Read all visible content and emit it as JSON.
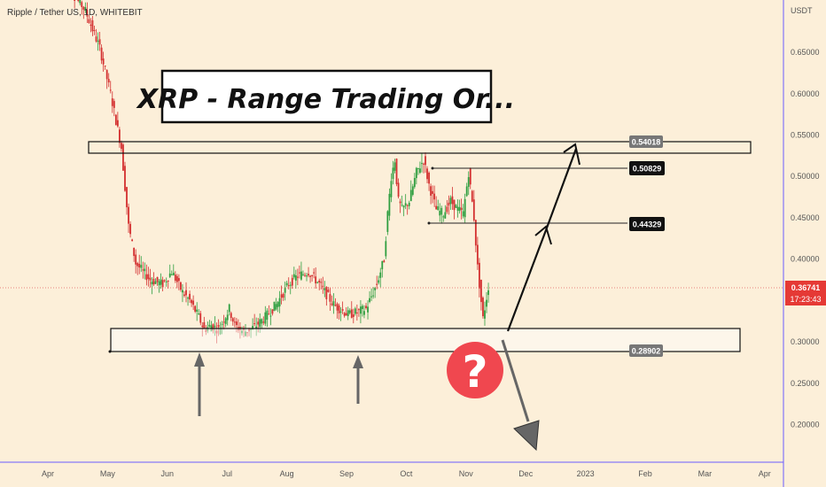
{
  "symbol_label": "Ripple / Tether US, 1D, WHITEBIT",
  "title": "XRP - Range Trading Or...",
  "question_icon": "question-mark-icon",
  "colors": {
    "background": "#fcefd9",
    "up": "#26a69a",
    "down": "#ef5350",
    "up_candle": "#2e9e3f",
    "down_candle": "#d32f2f",
    "question": "#f0474f",
    "axis_border": "#6a5cff"
  },
  "chart_data": {
    "type": "candlestick",
    "quote_currency": "USDT",
    "y_ticks": [
      "0.65000",
      "0.60000",
      "0.55000",
      "0.50000",
      "0.45000",
      "0.40000",
      "0.35000",
      "0.30000",
      "0.25000",
      "0.20000"
    ],
    "x_ticks": [
      "Apr",
      "May",
      "Jun",
      "Jul",
      "Aug",
      "Sep",
      "Oct",
      "Nov",
      "Dec",
      "2023",
      "Feb",
      "Mar",
      "Apr"
    ],
    "ylim": [
      0.16,
      0.7
    ],
    "current_price": "0.36741",
    "countdown": "17:23:43",
    "price_levels": [
      {
        "label": "0.54018",
        "value": 0.54018
      },
      {
        "label": "0.50829",
        "value": 0.50829
      },
      {
        "label": "0.44329",
        "value": 0.44329
      },
      {
        "label": "0.28902",
        "value": 0.28902
      }
    ],
    "zones": [
      {
        "name": "resistance",
        "low": 0.532,
        "high": 0.545
      },
      {
        "name": "support",
        "low": 0.289,
        "high": 0.317
      }
    ],
    "price_path": [
      [
        0,
        0.74
      ],
      [
        12,
        0.7
      ],
      [
        20,
        0.655
      ],
      [
        26,
        0.6
      ],
      [
        32,
        0.535
      ],
      [
        36,
        0.44
      ],
      [
        40,
        0.395
      ],
      [
        48,
        0.375
      ],
      [
        55,
        0.37
      ],
      [
        60,
        0.385
      ],
      [
        66,
        0.36
      ],
      [
        70,
        0.35
      ],
      [
        75,
        0.33
      ],
      [
        78,
        0.315
      ],
      [
        82,
        0.32
      ],
      [
        86,
        0.315
      ],
      [
        92,
        0.34
      ],
      [
        95,
        0.32
      ],
      [
        100,
        0.312
      ],
      [
        106,
        0.318
      ],
      [
        112,
        0.33
      ],
      [
        118,
        0.345
      ],
      [
        125,
        0.37
      ],
      [
        130,
        0.38
      ],
      [
        136,
        0.385
      ],
      [
        142,
        0.37
      ],
      [
        150,
        0.345
      ],
      [
        158,
        0.333
      ],
      [
        163,
        0.336
      ],
      [
        168,
        0.34
      ],
      [
        174,
        0.37
      ],
      [
        178,
        0.4
      ],
      [
        180,
        0.455
      ],
      [
        182,
        0.5
      ],
      [
        184,
        0.52
      ],
      [
        186,
        0.47
      ],
      [
        188,
        0.46
      ],
      [
        192,
        0.47
      ],
      [
        196,
        0.505
      ],
      [
        200,
        0.52
      ],
      [
        203,
        0.49
      ],
      [
        207,
        0.46
      ],
      [
        211,
        0.455
      ],
      [
        215,
        0.47
      ],
      [
        219,
        0.46
      ],
      [
        222,
        0.455
      ],
      [
        225,
        0.505
      ],
      [
        228,
        0.45
      ],
      [
        230,
        0.39
      ],
      [
        233,
        0.328
      ],
      [
        236,
        0.367
      ]
    ]
  }
}
